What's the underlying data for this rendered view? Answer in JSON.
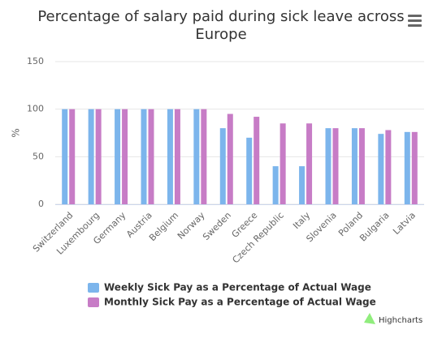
{
  "chart_data": {
    "type": "bar",
    "title": "Percentage of salary paid during sick leave across Europe",
    "y_axis_label": "%",
    "categories": [
      "Switzerland",
      "Luxembourg",
      "Germany",
      "Austria",
      "Belgium",
      "Norway",
      "Sweden",
      "Greece",
      "Czech Republic",
      "Italy",
      "Slovenia",
      "Poland",
      "Bulgaria",
      "Latvia"
    ],
    "series": [
      {
        "name": "Weekly Sick Pay as a Percentage of Actual Wage",
        "color": "#7cb5ec",
        "values": [
          100,
          100,
          100,
          100,
          100,
          100,
          80,
          70,
          40,
          40,
          80,
          80,
          74,
          76
        ]
      },
      {
        "name": "Monthly Sick Pay as a Percentage of Actual Wage",
        "color": "#c77cc6",
        "values": [
          100,
          100,
          100,
          100,
          100,
          100,
          95,
          92,
          85,
          85,
          80,
          80,
          78,
          76
        ]
      }
    ],
    "ylim": [
      0,
      150
    ],
    "yticks": [
      0,
      50,
      100,
      150
    ],
    "grid": true,
    "credits": "Highcharts"
  }
}
